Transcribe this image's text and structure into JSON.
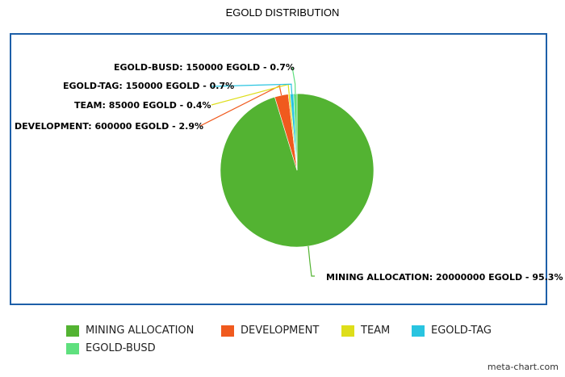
{
  "chart_data": {
    "type": "pie",
    "title": "EGOLD DISTRIBUTION",
    "legend_position": "bottom",
    "slices": [
      {
        "name": "MINING ALLOCATION",
        "value": 20000000,
        "percent": 95.3,
        "color": "#53b332",
        "label": "MINING ALLOCATION: 20000000 EGOLD - 95.3%"
      },
      {
        "name": "DEVELOPMENT",
        "value": 600000,
        "percent": 2.9,
        "color": "#f05a1e",
        "label": "DEVELOPMENT: 600000 EGOLD - 2.9%"
      },
      {
        "name": "TEAM",
        "value": 85000,
        "percent": 0.4,
        "color": "#dede1a",
        "label": "TEAM: 85000 EGOLD - 0.4%"
      },
      {
        "name": "EGOLD-TAG",
        "value": 150000,
        "percent": 0.7,
        "color": "#29c4e0",
        "label": "EGOLD-TAG: 150000 EGOLD - 0.7%"
      },
      {
        "name": "EGOLD-BUSD",
        "value": 150000,
        "percent": 0.7,
        "color": "#5fe07e",
        "label": "EGOLD-BUSD: 150000 EGOLD - 0.7%"
      }
    ]
  },
  "watermark": "meta-chart.com"
}
